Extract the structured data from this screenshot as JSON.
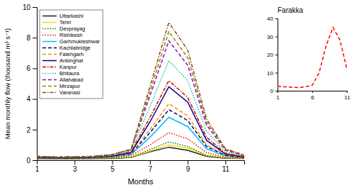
{
  "chart_data": [
    {
      "type": "line",
      "x_label": "Months",
      "y_label": "Mean monthly flow (thousand m³ s⁻¹)",
      "x": [
        1,
        2,
        3,
        4,
        5,
        6,
        7,
        8,
        9,
        10,
        11,
        12
      ],
      "series": [
        {
          "name": "Uttarkashi",
          "color": "#1a1a1a",
          "line_style": "solid",
          "values": [
            0.1,
            0.09,
            0.09,
            0.1,
            0.12,
            0.18,
            0.55,
            0.85,
            0.65,
            0.25,
            0.13,
            0.11
          ]
        },
        {
          "name": "Tehri",
          "color": "#FFD700",
          "line_style": "solid",
          "values": [
            0.12,
            0.1,
            0.1,
            0.12,
            0.15,
            0.2,
            0.6,
            1.0,
            0.8,
            0.3,
            0.15,
            0.12
          ]
        },
        {
          "name": "Devprayag",
          "color": "#008000",
          "line_style": "dotted",
          "values": [
            0.1,
            0.09,
            0.09,
            0.11,
            0.13,
            0.2,
            0.7,
            1.2,
            0.9,
            0.32,
            0.14,
            0.11
          ]
        },
        {
          "name": "Rishikesh",
          "color": "#FF0000",
          "line_style": "dotted",
          "values": [
            0.12,
            0.11,
            0.11,
            0.13,
            0.18,
            0.3,
            1.0,
            1.8,
            1.4,
            0.5,
            0.2,
            0.14
          ]
        },
        {
          "name": "Garhmukteshwar",
          "color": "#00BFFF",
          "line_style": "solid",
          "values": [
            0.14,
            0.12,
            0.13,
            0.15,
            0.22,
            0.38,
            1.5,
            2.8,
            2.2,
            0.75,
            0.28,
            0.17
          ]
        },
        {
          "name": "Kachlabridge",
          "color": "#000080",
          "line_style": "dashed",
          "values": [
            0.15,
            0.13,
            0.14,
            0.16,
            0.24,
            0.42,
            1.8,
            3.3,
            2.6,
            0.9,
            0.32,
            0.18
          ]
        },
        {
          "name": "Fatehgarh",
          "color": "#FF8C00",
          "line_style": "dashed",
          "values": [
            0.16,
            0.14,
            0.15,
            0.17,
            0.26,
            0.45,
            2.0,
            3.7,
            2.9,
            1.0,
            0.35,
            0.19
          ]
        },
        {
          "name": "Ankinghat",
          "color": "#00008B",
          "line_style": "solid",
          "values": [
            0.18,
            0.15,
            0.16,
            0.18,
            0.28,
            0.5,
            2.5,
            4.8,
            3.8,
            1.3,
            0.4,
            0.21
          ]
        },
        {
          "name": "Kanpur",
          "color": "#CC0000",
          "line_style": "dashdot",
          "values": [
            0.2,
            0.17,
            0.18,
            0.2,
            0.3,
            0.55,
            2.8,
            5.2,
            4.1,
            1.5,
            0.45,
            0.23
          ]
        },
        {
          "name": "Bhitaura",
          "color": "#00CC88",
          "line_style": "dotted",
          "values": [
            0.22,
            0.19,
            0.2,
            0.22,
            0.33,
            0.62,
            3.5,
            6.5,
            5.2,
            1.9,
            0.55,
            0.27
          ]
        },
        {
          "name": "Allahabad",
          "color": "#9900CC",
          "line_style": "dashed",
          "values": [
            0.24,
            0.2,
            0.21,
            0.24,
            0.36,
            0.68,
            4.2,
            7.8,
            6.2,
            2.3,
            0.65,
            0.3
          ]
        },
        {
          "name": "Mirzapur",
          "color": "#888800",
          "line_style": "dashed",
          "values": [
            0.25,
            0.21,
            0.22,
            0.25,
            0.37,
            0.7,
            4.5,
            8.4,
            6.7,
            2.5,
            0.7,
            0.32
          ]
        },
        {
          "name": "Varanasi",
          "color": "#8B4513",
          "line_style": "dashdot",
          "values": [
            0.26,
            0.22,
            0.23,
            0.26,
            0.38,
            0.72,
            4.8,
            9.0,
            7.2,
            2.7,
            0.75,
            0.34
          ]
        }
      ],
      "xlim": [
        1,
        12
      ],
      "ylim": [
        0,
        10
      ],
      "xticks": [
        1,
        3,
        5,
        7,
        9,
        11
      ],
      "yticks": [
        0,
        2,
        4,
        6,
        8,
        10
      ],
      "legend": "upper left",
      "grid": false
    },
    {
      "type": "line",
      "title": "Farakka",
      "x": [
        1,
        2,
        3,
        4,
        5,
        6,
        7,
        8,
        9,
        10,
        11
      ],
      "values": [
        2.5,
        2.2,
        2.0,
        1.8,
        2.2,
        3.0,
        10.0,
        25.0,
        35.0,
        28.0,
        12.0
      ],
      "color": "red",
      "line_style": "dashed",
      "xlim": [
        1,
        11
      ],
      "ylim": [
        0,
        40
      ],
      "xticks": [
        1,
        6,
        11
      ],
      "yticks": [
        0,
        10,
        20,
        30,
        40
      ],
      "grid": false
    }
  ]
}
